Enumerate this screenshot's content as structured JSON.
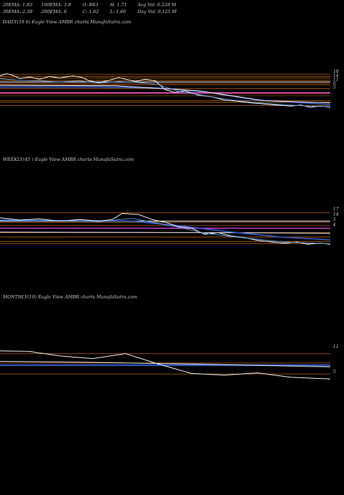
{
  "header": {
    "row1": [
      {
        "label": "20EMA: 1.83"
      },
      {
        "label": "100EMA: 3.8"
      },
      {
        "label": "O: R63"
      },
      {
        "label": "H: 1.71"
      },
      {
        "label": "Avg Vol: 0.228 M"
      }
    ],
    "row2": [
      {
        "label": "30EMA: 2.38"
      },
      {
        "label": "200EMA: 0"
      },
      {
        "label": "C: 1.62"
      },
      {
        "label": "L: 1.60"
      },
      {
        "label": "Day Vol: 0.125 M"
      }
    ]
  },
  "chart_data": [
    {
      "type": "line",
      "title": "DAILY(18          6) Eagle   View  AMBR charts MunafaSutra.com",
      "right_labels": [
        "18",
        "14",
        "11",
        "6",
        "5"
      ],
      "ylim": [
        0,
        20
      ],
      "levels": [
        {
          "y": 18,
          "color": "#c06a10"
        },
        {
          "y": 17.2,
          "color": "#c06a10"
        },
        {
          "y": 16.6,
          "color": "#c06a10"
        },
        {
          "y": 15.8,
          "color": "#c06a10"
        },
        {
          "y": 15.2,
          "color": "#c06a10"
        },
        {
          "y": 14.2,
          "color": "#c06a10"
        },
        {
          "y": 12.8,
          "color": "#c06a10"
        },
        {
          "y": 11.4,
          "color": "#c06a10"
        },
        {
          "y": 11.0,
          "color": "#c06a10"
        },
        {
          "y": 8.4,
          "color": "#c06a10"
        },
        {
          "y": 7.8,
          "color": "#c06a10"
        },
        {
          "y": 6.6,
          "color": "#c06a10"
        },
        {
          "y": 14.6,
          "color": "#8a3f08"
        },
        {
          "y": 10.2,
          "color": "#8a3f08"
        }
      ],
      "series": [
        {
          "color": "#d040d0",
          "width": 1.6,
          "points": [
            [
              0,
              11.2
            ],
            [
              100,
              11.2
            ]
          ]
        },
        {
          "color": "#ffffff",
          "width": 1.0,
          "points": [
            [
              0,
              15.2
            ],
            [
              100,
              15.2
            ]
          ]
        },
        {
          "color": "#3a5fd8",
          "width": 1.6,
          "points": [
            [
              0,
              13.4
            ],
            [
              30,
              13.4
            ],
            [
              48,
              13.0
            ],
            [
              62,
              11.6
            ],
            [
              78,
              8.6
            ],
            [
              100,
              7.0
            ]
          ]
        },
        {
          "color": "#ffffff",
          "width": 1.0,
          "points": [
            [
              0,
              14.0
            ],
            [
              35,
              13.8
            ],
            [
              60,
              12.0
            ],
            [
              80,
              8.4
            ],
            [
              100,
              7.6
            ]
          ]
        },
        {
          "color": "#ffffff",
          "width": 1.0,
          "points": [
            [
              0,
              17.4
            ],
            [
              2,
              18.2
            ],
            [
              4,
              17.6
            ],
            [
              6,
              16.4
            ],
            [
              9,
              17.0
            ],
            [
              12,
              16.2
            ],
            [
              15,
              17.2
            ],
            [
              18,
              16.6
            ],
            [
              22,
              17.4
            ],
            [
              25,
              16.8
            ],
            [
              27,
              15.6
            ],
            [
              30,
              15.0
            ],
            [
              33,
              15.8
            ],
            [
              36,
              16.8
            ],
            [
              38,
              16.2
            ],
            [
              41,
              15.4
            ],
            [
              44,
              16.2
            ],
            [
              47,
              15.6
            ],
            [
              50,
              12.4
            ],
            [
              53,
              11.4
            ],
            [
              56,
              12.0
            ],
            [
              60,
              10.4
            ],
            [
              64,
              9.8
            ],
            [
              68,
              8.6
            ],
            [
              72,
              8.2
            ],
            [
              76,
              7.6
            ],
            [
              80,
              7.2
            ],
            [
              84,
              6.8
            ],
            [
              88,
              6.4
            ],
            [
              91,
              6.8
            ],
            [
              94,
              6.0
            ],
            [
              97,
              6.4
            ],
            [
              100,
              6.0
            ]
          ]
        },
        {
          "color": "#5aa0f0",
          "width": 0.9,
          "points": [
            [
              0,
              16.4
            ],
            [
              6,
              15.8
            ],
            [
              12,
              15.6
            ],
            [
              18,
              15.2
            ],
            [
              24,
              15.6
            ],
            [
              30,
              14.8
            ],
            [
              36,
              15.4
            ],
            [
              42,
              15.0
            ],
            [
              48,
              14.2
            ],
            [
              54,
              11.8
            ],
            [
              60,
              10.6
            ],
            [
              66,
              9.4
            ],
            [
              72,
              8.4
            ],
            [
              80,
              7.4
            ],
            [
              88,
              6.8
            ],
            [
              94,
              6.4
            ],
            [
              100,
              6.2
            ]
          ]
        }
      ]
    },
    {
      "type": "line",
      "title": "WEEKLY(45                         ) Eagle   View  AMBR charts MunafaSutra.com",
      "right_labels": [
        "17",
        "14",
        "5",
        "4"
      ],
      "ylim": [
        0,
        20
      ],
      "levels": [
        {
          "y": 17.6,
          "color": "#c06a10"
        },
        {
          "y": 14.2,
          "color": "#c06a10"
        },
        {
          "y": 13.0,
          "color": "#c06a10"
        },
        {
          "y": 10.4,
          "color": "#c06a10"
        },
        {
          "y": 8.8,
          "color": "#c06a10"
        },
        {
          "y": 7.2,
          "color": "#c06a10"
        },
        {
          "y": 6.4,
          "color": "#c06a10"
        }
      ],
      "series": [
        {
          "color": "#d040d0",
          "width": 1.6,
          "points": [
            [
              0,
              12.0
            ],
            [
              100,
              12.0
            ]
          ]
        },
        {
          "color": "#ffffff",
          "width": 1.0,
          "points": [
            [
              0,
              14.6
            ],
            [
              100,
              14.6
            ]
          ]
        },
        {
          "color": "#ffffff",
          "width": 1.0,
          "points": [
            [
              0,
              10.6
            ],
            [
              60,
              10.4
            ],
            [
              100,
              10.2
            ]
          ]
        },
        {
          "color": "#3a5fd8",
          "width": 1.6,
          "points": [
            [
              0,
              15.0
            ],
            [
              20,
              14.8
            ],
            [
              40,
              14.6
            ],
            [
              55,
              12.8
            ],
            [
              70,
              10.6
            ],
            [
              85,
              8.8
            ],
            [
              100,
              7.8
            ]
          ]
        },
        {
          "color": "#ffffff",
          "width": 1.0,
          "points": [
            [
              0,
              15.8
            ],
            [
              6,
              15.0
            ],
            [
              12,
              15.4
            ],
            [
              18,
              14.6
            ],
            [
              24,
              15.2
            ],
            [
              30,
              14.6
            ],
            [
              34,
              15.2
            ],
            [
              37,
              17.4
            ],
            [
              42,
              17.0
            ],
            [
              46,
              15.2
            ],
            [
              50,
              14.2
            ],
            [
              54,
              12.6
            ],
            [
              58,
              12.0
            ],
            [
              62,
              9.8
            ],
            [
              66,
              10.4
            ],
            [
              70,
              9.2
            ],
            [
              74,
              8.6
            ],
            [
              78,
              7.6
            ],
            [
              82,
              7.0
            ],
            [
              86,
              6.6
            ],
            [
              90,
              7.0
            ],
            [
              93,
              6.2
            ],
            [
              97,
              6.6
            ],
            [
              100,
              6.2
            ]
          ]
        },
        {
          "color": "#5aa0f0",
          "width": 0.9,
          "points": [
            [
              0,
              14.8
            ],
            [
              10,
              14.6
            ],
            [
              20,
              14.8
            ],
            [
              30,
              14.4
            ],
            [
              40,
              15.6
            ],
            [
              46,
              14.2
            ],
            [
              54,
              12.4
            ],
            [
              62,
              10.2
            ],
            [
              70,
              9.0
            ],
            [
              78,
              8.0
            ],
            [
              86,
              7.0
            ],
            [
              94,
              6.6
            ],
            [
              100,
              6.4
            ]
          ]
        }
      ]
    },
    {
      "type": "line",
      "title": "MONTHLY(10) Eagle   View  AMBR charts MunafaSutra.com",
      "right_labels": [
        "11",
        "5"
      ],
      "ylim": [
        0,
        20
      ],
      "levels": [
        {
          "y": 16.4,
          "color": "#c06a10"
        },
        {
          "y": 13.0,
          "color": "#c06a10"
        },
        {
          "y": 9.0,
          "color": "#c06a10"
        }
      ],
      "series": [
        {
          "color": "#3a5fd8",
          "width": 2.2,
          "points": [
            [
              0,
              12.2
            ],
            [
              100,
              12.2
            ]
          ]
        },
        {
          "color": "#ffffff",
          "width": 1.0,
          "points": [
            [
              0,
              13.6
            ],
            [
              30,
              13.2
            ],
            [
              60,
              12.6
            ],
            [
              100,
              11.6
            ]
          ]
        },
        {
          "color": "#ffffff",
          "width": 1.0,
          "points": [
            [
              0,
              17.4
            ],
            [
              9,
              17.2
            ],
            [
              18,
              15.6
            ],
            [
              28,
              14.6
            ],
            [
              38,
              16.4
            ],
            [
              48,
              12.6
            ],
            [
              58,
              9.2
            ],
            [
              68,
              8.6
            ],
            [
              78,
              9.4
            ],
            [
              88,
              7.8
            ],
            [
              100,
              7.2
            ]
          ]
        }
      ]
    }
  ]
}
